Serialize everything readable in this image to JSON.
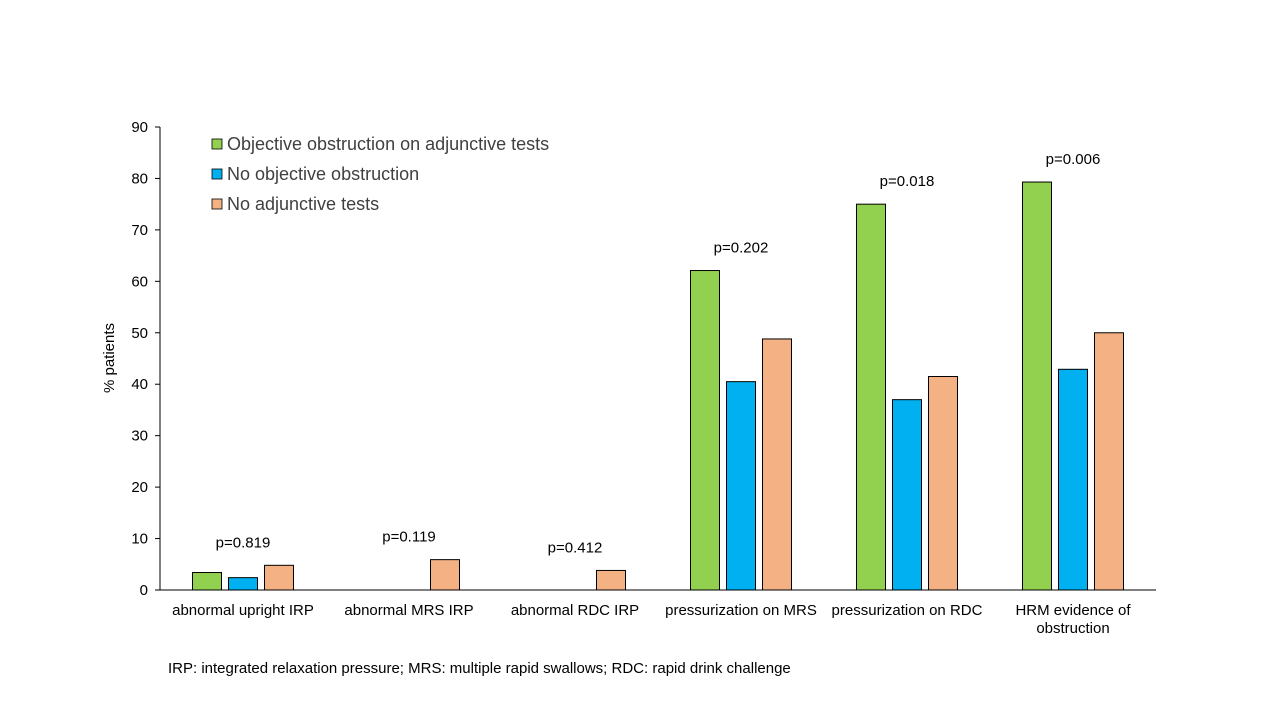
{
  "chart_data": {
    "type": "bar",
    "ylabel": "% patients",
    "ylim": [
      0,
      90
    ],
    "yticks": [
      0,
      10,
      20,
      30,
      40,
      50,
      60,
      70,
      80,
      90
    ],
    "legend_position": "top-left",
    "categories": [
      [
        "abnormal upright IRP"
      ],
      [
        "abnormal MRS IRP"
      ],
      [
        "abnormal RDC IRP"
      ],
      [
        "pressurization on MRS"
      ],
      [
        "pressurization on RDC"
      ],
      [
        "HRM evidence of",
        "obstruction"
      ]
    ],
    "series": [
      {
        "name": "Objective obstruction on adjunctive tests",
        "color": "#92d050",
        "values": [
          3.4,
          0,
          0,
          62.1,
          75.0,
          79.3
        ]
      },
      {
        "name": "No objective obstruction",
        "color": "#00b0f0",
        "values": [
          2.4,
          0,
          0,
          40.5,
          37.0,
          42.9
        ]
      },
      {
        "name": "No adjunctive tests",
        "color": "#f4b183",
        "values": [
          4.8,
          5.9,
          3.8,
          48.8,
          41.5,
          50.0
        ]
      }
    ],
    "annotations": [
      "p=0.819",
      "p=0.119",
      "p=0.412",
      "p=0.202",
      "p=0.018",
      "p=0.006"
    ]
  },
  "footnote": "IRP:  integrated relaxation pressure;  MRS:  multiple rapid swallows;  RDC: rapid drink challenge"
}
